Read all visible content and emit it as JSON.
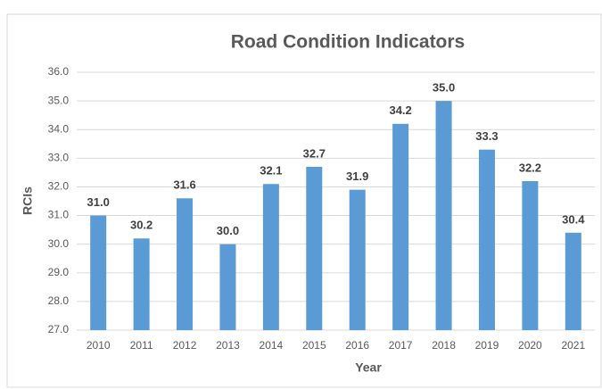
{
  "chart_data": {
    "type": "bar",
    "title": "Road Condition Indicators",
    "x_label": "Year",
    "y_label": "RCIs",
    "categories": [
      "2010",
      "2011",
      "2012",
      "2013",
      "2014",
      "2015",
      "2016",
      "2017",
      "2018",
      "2019",
      "2020",
      "2021"
    ],
    "values": [
      31.0,
      30.2,
      31.6,
      30.0,
      32.1,
      32.7,
      31.9,
      34.2,
      35.0,
      33.3,
      32.2,
      30.4
    ],
    "value_labels": [
      "31.0",
      "30.2",
      "31.6",
      "30.0",
      "32.1",
      "32.7",
      "31.9",
      "34.2",
      "35.0",
      "33.3",
      "32.2",
      "30.4"
    ],
    "color": "#5b9bd5",
    "ylim": [
      27,
      36
    ],
    "yticks": [
      {
        "value": 27,
        "label": "27.0"
      },
      {
        "value": 28,
        "label": "28.0"
      },
      {
        "value": 29,
        "label": "29.0"
      },
      {
        "value": 30,
        "label": "30.0"
      },
      {
        "value": 31,
        "label": "31.0"
      },
      {
        "value": 32,
        "label": "32.0"
      },
      {
        "value": 33,
        "label": "33.0"
      },
      {
        "value": 34,
        "label": "34.0"
      },
      {
        "value": 35,
        "label": "35.0"
      },
      {
        "value": 36,
        "label": "36.0"
      }
    ],
    "grid": true
  }
}
